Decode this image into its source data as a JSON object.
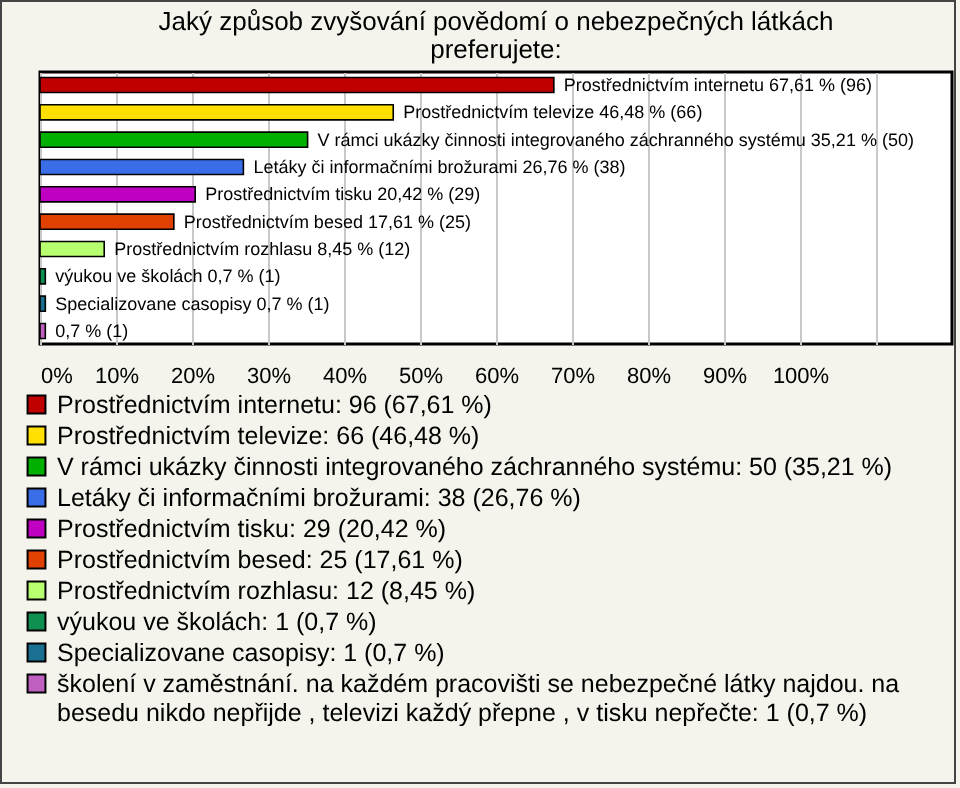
{
  "chart_data": {
    "type": "bar",
    "orientation": "horizontal",
    "title": "Jaký způsob zvyšování povědomí o nebezpečných látkách preferujete:",
    "categories": [
      null,
      null,
      null,
      null,
      null,
      null,
      null,
      null,
      null,
      null
    ],
    "xlim": [
      0,
      120
    ],
    "xticks": [
      {
        "value": 0,
        "label": "0%"
      },
      {
        "value": 10,
        "label": "10%"
      },
      {
        "value": 20,
        "label": "20%"
      },
      {
        "value": 30,
        "label": "30%"
      },
      {
        "value": 40,
        "label": "40%"
      },
      {
        "value": 50,
        "label": "50%"
      },
      {
        "value": 60,
        "label": "60%"
      },
      {
        "value": 70,
        "label": "70%"
      },
      {
        "value": 80,
        "label": "80%"
      },
      {
        "value": 90,
        "label": "90%"
      },
      {
        "value": 100,
        "label": "100%"
      },
      {
        "value": 110,
        "label": null
      }
    ],
    "grid": "x",
    "legend": "bottom",
    "series": [
      {
        "name": "Prostřednictvím internetu: 96 (67,61 %)",
        "color": "#c00000",
        "values": [
          67.61,
          null,
          null,
          null,
          null,
          null,
          null,
          null,
          null,
          null
        ],
        "value_labels": [
          "Prostřednictvím internetu 67,61 % (96)",
          null,
          null,
          null,
          null,
          null,
          null,
          null,
          null,
          null
        ]
      },
      {
        "name": "Prostřednictvím televize: 66 (46,48 %)",
        "color": "#ffe000",
        "values": [
          null,
          46.48,
          null,
          null,
          null,
          null,
          null,
          null,
          null,
          null
        ],
        "value_labels": [
          null,
          "Prostřednictvím televize 46,48 % (66)",
          null,
          null,
          null,
          null,
          null,
          null,
          null,
          null
        ]
      },
      {
        "name": "V rámci ukázky činnosti integrovaného záchranného systému: 50 (35,21 %)",
        "color": "#00b000",
        "values": [
          null,
          null,
          35.21,
          null,
          null,
          null,
          null,
          null,
          null,
          null
        ],
        "value_labels": [
          null,
          null,
          "V rámci ukázky činnosti integrovaného záchranného systému 35,21 % (50)",
          null,
          null,
          null,
          null,
          null,
          null,
          null
        ]
      },
      {
        "name": "Letáky či informačními brožurami: 38 (26,76 %)",
        "color": "#3a6ee8",
        "values": [
          null,
          null,
          null,
          26.76,
          null,
          null,
          null,
          null,
          null,
          null
        ],
        "value_labels": [
          null,
          null,
          null,
          "Letáky či informačními brožurami 26,76 % (38)",
          null,
          null,
          null,
          null,
          null,
          null
        ]
      },
      {
        "name": "Prostřednictvím tisku: 29 (20,42 %)",
        "color": "#c000c0",
        "values": [
          null,
          null,
          null,
          null,
          20.42,
          null,
          null,
          null,
          null,
          null
        ],
        "value_labels": [
          null,
          null,
          null,
          null,
          "Prostřednictvím tisku 20,42 % (29)",
          null,
          null,
          null,
          null,
          null
        ]
      },
      {
        "name": "Prostřednictvím besed: 25 (17,61 %)",
        "color": "#e04000",
        "values": [
          null,
          null,
          null,
          null,
          null,
          17.61,
          null,
          null,
          null,
          null
        ],
        "value_labels": [
          null,
          null,
          null,
          null,
          null,
          "Prostřednictvím besed 17,61 % (25)",
          null,
          null,
          null,
          null
        ]
      },
      {
        "name": "Prostřednictvím rozhlasu: 12 (8,45 %)",
        "color": "#b8ff70",
        "values": [
          null,
          null,
          null,
          null,
          null,
          null,
          8.45,
          null,
          null,
          null
        ],
        "value_labels": [
          null,
          null,
          null,
          null,
          null,
          null,
          "Prostřednictvím rozhlasu 8,45 % (12)",
          null,
          null,
          null
        ]
      },
      {
        "name": "výukou ve školách: 1 (0,7 %)",
        "color": "#109050",
        "values": [
          null,
          null,
          null,
          null,
          null,
          null,
          null,
          0.7,
          null,
          null
        ],
        "value_labels": [
          null,
          null,
          null,
          null,
          null,
          null,
          null,
          "výukou ve školách 0,7 % (1)",
          null,
          null
        ]
      },
      {
        "name": "Specializovane casopisy: 1 (0,7 %)",
        "color": "#1a7090",
        "values": [
          null,
          null,
          null,
          null,
          null,
          null,
          null,
          null,
          0.7,
          null
        ],
        "value_labels": [
          null,
          null,
          null,
          null,
          null,
          null,
          null,
          null,
          "Specializovane casopisy 0,7 % (1)",
          null
        ]
      },
      {
        "name": "školení v zaměstnání. na každém pracovišti se nebezpečné látky najdou. na besedu nikdo nepřijde , televizi každý přepne , v tisku nepřečte: 1 (0,7 %)",
        "color": "#c060c0",
        "values": [
          null,
          null,
          null,
          null,
          null,
          null,
          null,
          null,
          null,
          0.7
        ],
        "value_labels": [
          null,
          null,
          null,
          null,
          null,
          null,
          null,
          null,
          null,
          "0,7 % (1)"
        ]
      }
    ]
  }
}
